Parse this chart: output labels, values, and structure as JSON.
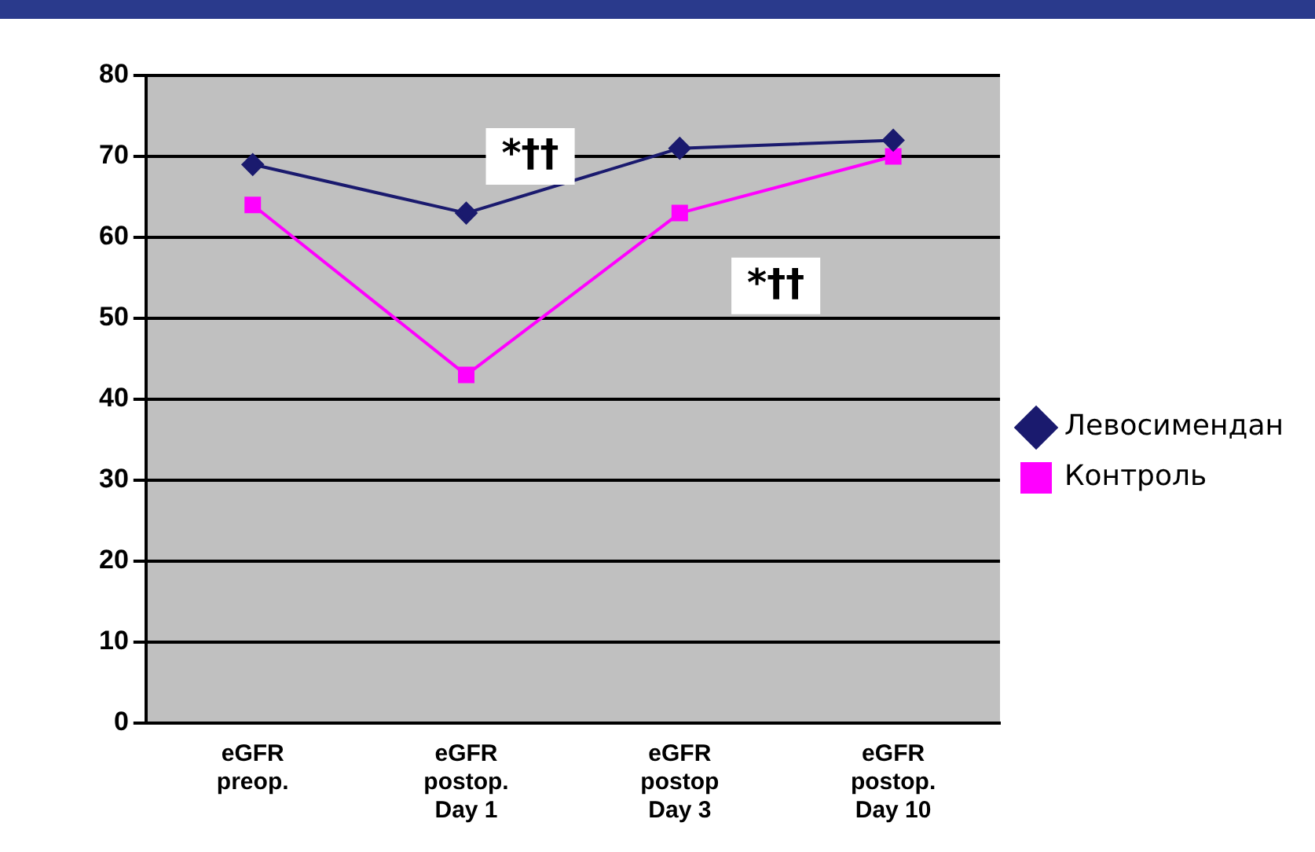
{
  "chart_data": {
    "type": "line",
    "categories": [
      "eGFR\npreop.",
      "eGFR\npostop.\nDay 1",
      "eGFR\npostop\nDay 3",
      "eGFR\npostop.\nDay 10"
    ],
    "series": [
      {
        "name": "Левосимендан",
        "color": "#1a1a6e",
        "marker": "diamond",
        "values": [
          69,
          63,
          71,
          72
        ]
      },
      {
        "name": "Контроль",
        "color": "#ff00ff",
        "marker": "square",
        "values": [
          64,
          43,
          63,
          70
        ]
      }
    ],
    "ylim": [
      0,
      80
    ],
    "yticks": [
      0,
      10,
      20,
      30,
      40,
      50,
      60,
      70,
      80
    ],
    "grid": "y",
    "legend": "right",
    "annotations": [
      "*††",
      "*††"
    ]
  }
}
